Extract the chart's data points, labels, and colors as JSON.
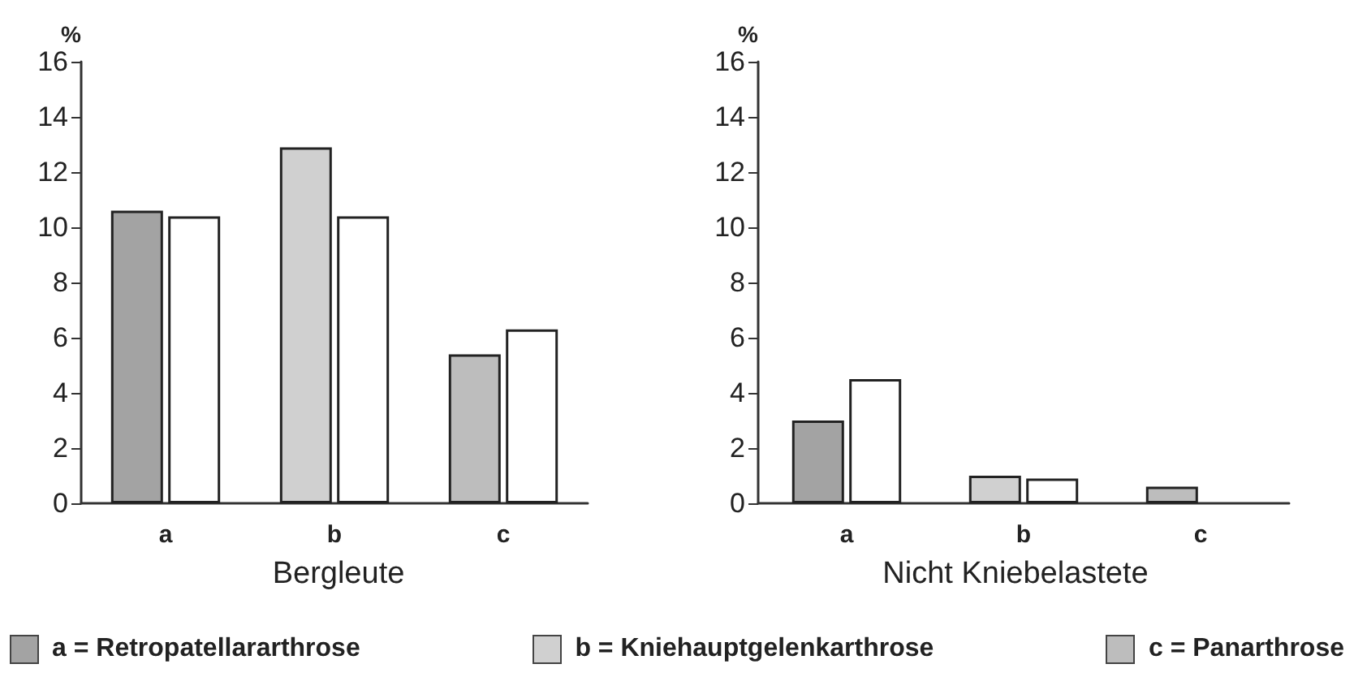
{
  "chart_data": [
    {
      "type": "bar",
      "title": "Bergleute",
      "ylabel": "%",
      "categories": [
        "a",
        "b",
        "c"
      ],
      "ylim": [
        0,
        16
      ],
      "yticks": [
        0,
        2,
        4,
        6,
        8,
        10,
        12,
        14,
        16
      ],
      "grid": false,
      "series": [
        {
          "colors": [
            "#a3a3a3",
            "#d0d0d0",
            "#bdbdbd"
          ],
          "values": [
            10.6,
            12.9,
            5.4
          ]
        },
        {
          "color": "#ffffff",
          "values": [
            10.4,
            10.4,
            6.3
          ]
        }
      ],
      "annotations": [
        "a = Retropatellararthrose",
        "b = Kniehauptgelenkarthrose",
        "c = Panarthrose"
      ]
    },
    {
      "type": "bar",
      "title": "Nicht Kniebelastete",
      "ylabel": "%",
      "categories": [
        "a",
        "b",
        "c"
      ],
      "ylim": [
        0,
        16
      ],
      "yticks": [
        0,
        2,
        4,
        6,
        8,
        10,
        12,
        14,
        16
      ],
      "grid": false,
      "series": [
        {
          "colors": [
            "#a3a3a3",
            "#d0d0d0",
            "#bdbdbd"
          ],
          "values": [
            3.0,
            1.0,
            0.6
          ]
        },
        {
          "color": "#ffffff",
          "values": [
            4.5,
            0.9,
            null
          ]
        }
      ]
    }
  ]
}
